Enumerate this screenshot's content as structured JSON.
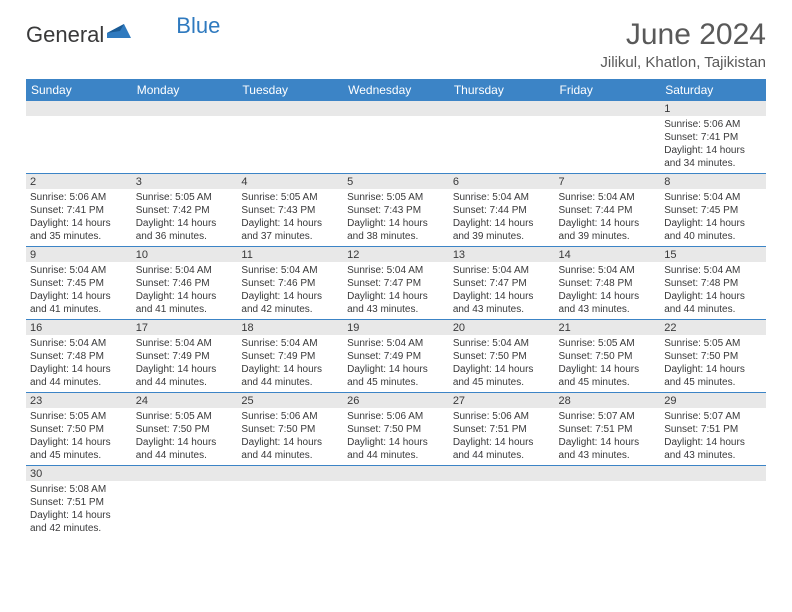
{
  "logo": {
    "general": "General",
    "blue": "Blue"
  },
  "title": "June 2024",
  "location": "Jilikul, Khatlon, Tajikistan",
  "colors": {
    "header_bg": "#3c84c6",
    "header_text": "#ffffff",
    "number_bg": "#e8e8e8",
    "row_border": "#3c84c6",
    "body_text": "#39393a",
    "title_text": "#595959",
    "logo_blue": "#2f7abf"
  },
  "day_headers": [
    "Sunday",
    "Monday",
    "Tuesday",
    "Wednesday",
    "Thursday",
    "Friday",
    "Saturday"
  ],
  "weeks": [
    [
      null,
      null,
      null,
      null,
      null,
      null,
      {
        "n": "1",
        "sunrise": "5:06 AM",
        "sunset": "7:41 PM",
        "dl1": "Daylight: 14 hours",
        "dl2": "and 34 minutes."
      }
    ],
    [
      {
        "n": "2",
        "sunrise": "5:06 AM",
        "sunset": "7:41 PM",
        "dl1": "Daylight: 14 hours",
        "dl2": "and 35 minutes."
      },
      {
        "n": "3",
        "sunrise": "5:05 AM",
        "sunset": "7:42 PM",
        "dl1": "Daylight: 14 hours",
        "dl2": "and 36 minutes."
      },
      {
        "n": "4",
        "sunrise": "5:05 AM",
        "sunset": "7:43 PM",
        "dl1": "Daylight: 14 hours",
        "dl2": "and 37 minutes."
      },
      {
        "n": "5",
        "sunrise": "5:05 AM",
        "sunset": "7:43 PM",
        "dl1": "Daylight: 14 hours",
        "dl2": "and 38 minutes."
      },
      {
        "n": "6",
        "sunrise": "5:04 AM",
        "sunset": "7:44 PM",
        "dl1": "Daylight: 14 hours",
        "dl2": "and 39 minutes."
      },
      {
        "n": "7",
        "sunrise": "5:04 AM",
        "sunset": "7:44 PM",
        "dl1": "Daylight: 14 hours",
        "dl2": "and 39 minutes."
      },
      {
        "n": "8",
        "sunrise": "5:04 AM",
        "sunset": "7:45 PM",
        "dl1": "Daylight: 14 hours",
        "dl2": "and 40 minutes."
      }
    ],
    [
      {
        "n": "9",
        "sunrise": "5:04 AM",
        "sunset": "7:45 PM",
        "dl1": "Daylight: 14 hours",
        "dl2": "and 41 minutes."
      },
      {
        "n": "10",
        "sunrise": "5:04 AM",
        "sunset": "7:46 PM",
        "dl1": "Daylight: 14 hours",
        "dl2": "and 41 minutes."
      },
      {
        "n": "11",
        "sunrise": "5:04 AM",
        "sunset": "7:46 PM",
        "dl1": "Daylight: 14 hours",
        "dl2": "and 42 minutes."
      },
      {
        "n": "12",
        "sunrise": "5:04 AM",
        "sunset": "7:47 PM",
        "dl1": "Daylight: 14 hours",
        "dl2": "and 43 minutes."
      },
      {
        "n": "13",
        "sunrise": "5:04 AM",
        "sunset": "7:47 PM",
        "dl1": "Daylight: 14 hours",
        "dl2": "and 43 minutes."
      },
      {
        "n": "14",
        "sunrise": "5:04 AM",
        "sunset": "7:48 PM",
        "dl1": "Daylight: 14 hours",
        "dl2": "and 43 minutes."
      },
      {
        "n": "15",
        "sunrise": "5:04 AM",
        "sunset": "7:48 PM",
        "dl1": "Daylight: 14 hours",
        "dl2": "and 44 minutes."
      }
    ],
    [
      {
        "n": "16",
        "sunrise": "5:04 AM",
        "sunset": "7:48 PM",
        "dl1": "Daylight: 14 hours",
        "dl2": "and 44 minutes."
      },
      {
        "n": "17",
        "sunrise": "5:04 AM",
        "sunset": "7:49 PM",
        "dl1": "Daylight: 14 hours",
        "dl2": "and 44 minutes."
      },
      {
        "n": "18",
        "sunrise": "5:04 AM",
        "sunset": "7:49 PM",
        "dl1": "Daylight: 14 hours",
        "dl2": "and 44 minutes."
      },
      {
        "n": "19",
        "sunrise": "5:04 AM",
        "sunset": "7:49 PM",
        "dl1": "Daylight: 14 hours",
        "dl2": "and 45 minutes."
      },
      {
        "n": "20",
        "sunrise": "5:04 AM",
        "sunset": "7:50 PM",
        "dl1": "Daylight: 14 hours",
        "dl2": "and 45 minutes."
      },
      {
        "n": "21",
        "sunrise": "5:05 AM",
        "sunset": "7:50 PM",
        "dl1": "Daylight: 14 hours",
        "dl2": "and 45 minutes."
      },
      {
        "n": "22",
        "sunrise": "5:05 AM",
        "sunset": "7:50 PM",
        "dl1": "Daylight: 14 hours",
        "dl2": "and 45 minutes."
      }
    ],
    [
      {
        "n": "23",
        "sunrise": "5:05 AM",
        "sunset": "7:50 PM",
        "dl1": "Daylight: 14 hours",
        "dl2": "and 45 minutes."
      },
      {
        "n": "24",
        "sunrise": "5:05 AM",
        "sunset": "7:50 PM",
        "dl1": "Daylight: 14 hours",
        "dl2": "and 44 minutes."
      },
      {
        "n": "25",
        "sunrise": "5:06 AM",
        "sunset": "7:50 PM",
        "dl1": "Daylight: 14 hours",
        "dl2": "and 44 minutes."
      },
      {
        "n": "26",
        "sunrise": "5:06 AM",
        "sunset": "7:50 PM",
        "dl1": "Daylight: 14 hours",
        "dl2": "and 44 minutes."
      },
      {
        "n": "27",
        "sunrise": "5:06 AM",
        "sunset": "7:51 PM",
        "dl1": "Daylight: 14 hours",
        "dl2": "and 44 minutes."
      },
      {
        "n": "28",
        "sunrise": "5:07 AM",
        "sunset": "7:51 PM",
        "dl1": "Daylight: 14 hours",
        "dl2": "and 43 minutes."
      },
      {
        "n": "29",
        "sunrise": "5:07 AM",
        "sunset": "7:51 PM",
        "dl1": "Daylight: 14 hours",
        "dl2": "and 43 minutes."
      }
    ],
    [
      {
        "n": "30",
        "sunrise": "5:08 AM",
        "sunset": "7:51 PM",
        "dl1": "Daylight: 14 hours",
        "dl2": "and 42 minutes."
      },
      null,
      null,
      null,
      null,
      null,
      null
    ]
  ],
  "labels": {
    "sunrise": "Sunrise: ",
    "sunset": "Sunset: "
  }
}
